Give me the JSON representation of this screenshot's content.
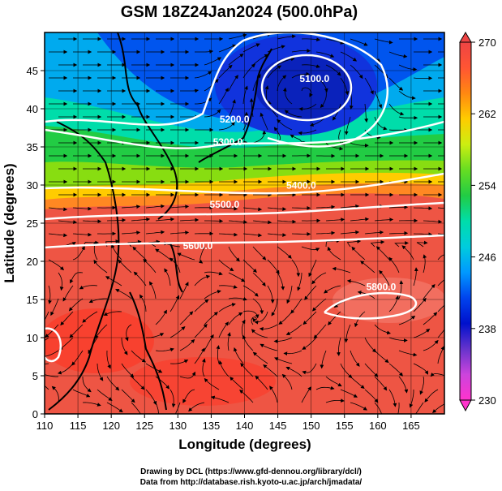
{
  "figure": {
    "title": "GSM 18Z24Jan2024 (500.0hPa)",
    "xlabel": "Longitude (degrees)",
    "ylabel": "Latitude  (degrees)"
  },
  "axes": {
    "x_range": [
      110,
      170
    ],
    "y_range": [
      0,
      50
    ],
    "x_ticks": [
      110,
      115,
      120,
      125,
      130,
      135,
      140,
      145,
      150,
      155,
      160,
      165
    ],
    "y_ticks": [
      0,
      5,
      10,
      15,
      20,
      25,
      30,
      35,
      40,
      45
    ],
    "grid": true
  },
  "colorbar": {
    "ticks": [
      230,
      238,
      246,
      254,
      262,
      270
    ],
    "range": [
      230,
      270
    ],
    "colors": [
      "#ff33cc",
      "#cc44dd",
      "#6633cc",
      "#0011cc",
      "#0044ee",
      "#0099ff",
      "#00ccdd",
      "#00ddaa",
      "#22cc44",
      "#66dd22",
      "#ccee11",
      "#ffcc00",
      "#ff8811",
      "#ff5533",
      "#ee4444"
    ]
  },
  "contour_labels": [
    {
      "text": "5100.0",
      "lon": 150.5,
      "lat": 43.5
    },
    {
      "text": "5200.0",
      "lon": 138.5,
      "lat": 38.2
    },
    {
      "text": "5300.0",
      "lon": 137.5,
      "lat": 35.2
    },
    {
      "text": "5400.0",
      "lon": 148.5,
      "lat": 29.5
    },
    {
      "text": "5500.0",
      "lon": 137.0,
      "lat": 27.0
    },
    {
      "text": "5600.0",
      "lon": 133.0,
      "lat": 21.6
    },
    {
      "text": "5800.0",
      "lon": 160.5,
      "lat": 16.2
    }
  ],
  "credits": {
    "line1": "Drawing by DCL (https://www.gfd-dennou.org/library/dcl/)",
    "line2": "Data from http://database.rish.kyoto-u.ac.jp/arch/jmadata/"
  }
}
